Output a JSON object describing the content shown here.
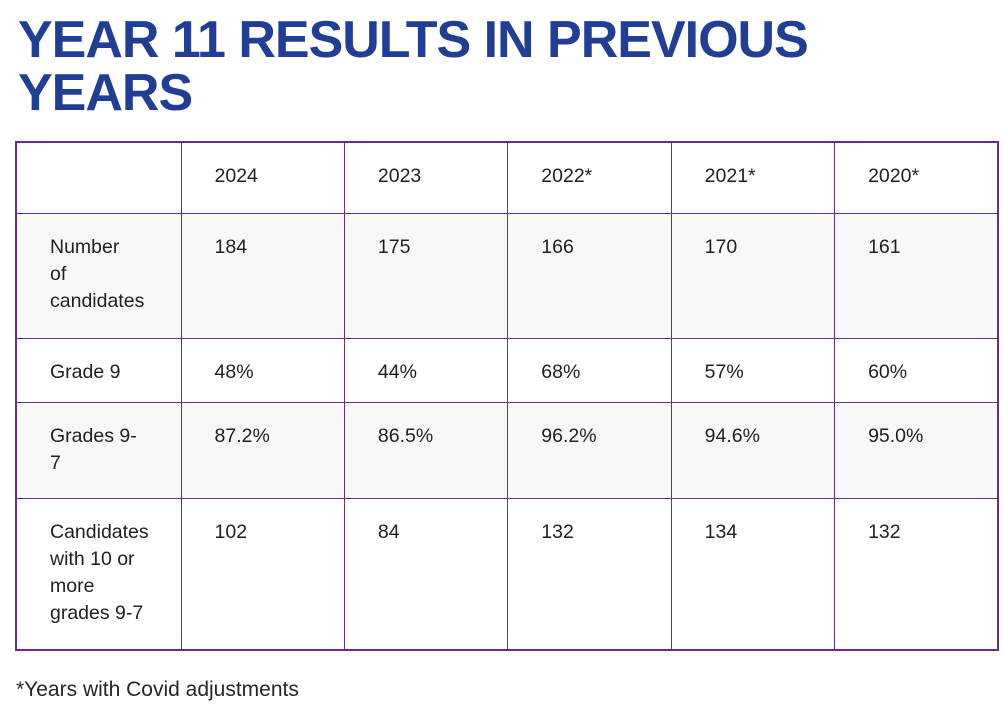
{
  "page": {
    "title": "YEAR 11 RESULTS IN PREVIOUS YEARS",
    "footnote": "*Years with Covid adjustments"
  },
  "colors": {
    "title_blue": "#203e96",
    "border_purple": "#662d91",
    "stripe_gray": "#f8f8f8",
    "text_dark": "#1f1f1f"
  },
  "table": {
    "columns": [
      "",
      "2024",
      "2023",
      "2022*",
      "2021*",
      "2020*"
    ],
    "rows": [
      {
        "label": "Number\nof\ncandidates",
        "values": [
          "184",
          "175",
          "166",
          "170",
          "161"
        ]
      },
      {
        "label": "Grade 9",
        "values": [
          "48%",
          "44%",
          "68%",
          "57%",
          "60%"
        ]
      },
      {
        "label": "Grades 9-\n7",
        "values": [
          "87.2%",
          "86.5%",
          "96.2%",
          "94.6%",
          "95.0%"
        ]
      },
      {
        "label": "Candidates\nwith 10 or\nmore\ngrades 9-7",
        "values": [
          "102",
          "84",
          "132",
          "134",
          "132"
        ]
      }
    ]
  },
  "chart_data": {
    "type": "table",
    "title": "YEAR 11 RESULTS IN PREVIOUS YEARS",
    "categories": [
      "2024",
      "2023",
      "2022*",
      "2021*",
      "2020*"
    ],
    "series": [
      {
        "name": "Number of candidates",
        "values": [
          184,
          175,
          166,
          170,
          161
        ]
      },
      {
        "name": "Grade 9",
        "values": [
          "48%",
          "44%",
          "68%",
          "57%",
          "60%"
        ]
      },
      {
        "name": "Grades 9-7",
        "values": [
          "87.2%",
          "86.5%",
          "96.2%",
          "94.6%",
          "95.0%"
        ]
      },
      {
        "name": "Candidates with 10 or more grades 9-7",
        "values": [
          102,
          84,
          132,
          134,
          132
        ]
      }
    ],
    "footnote": "*Years with Covid adjustments"
  }
}
